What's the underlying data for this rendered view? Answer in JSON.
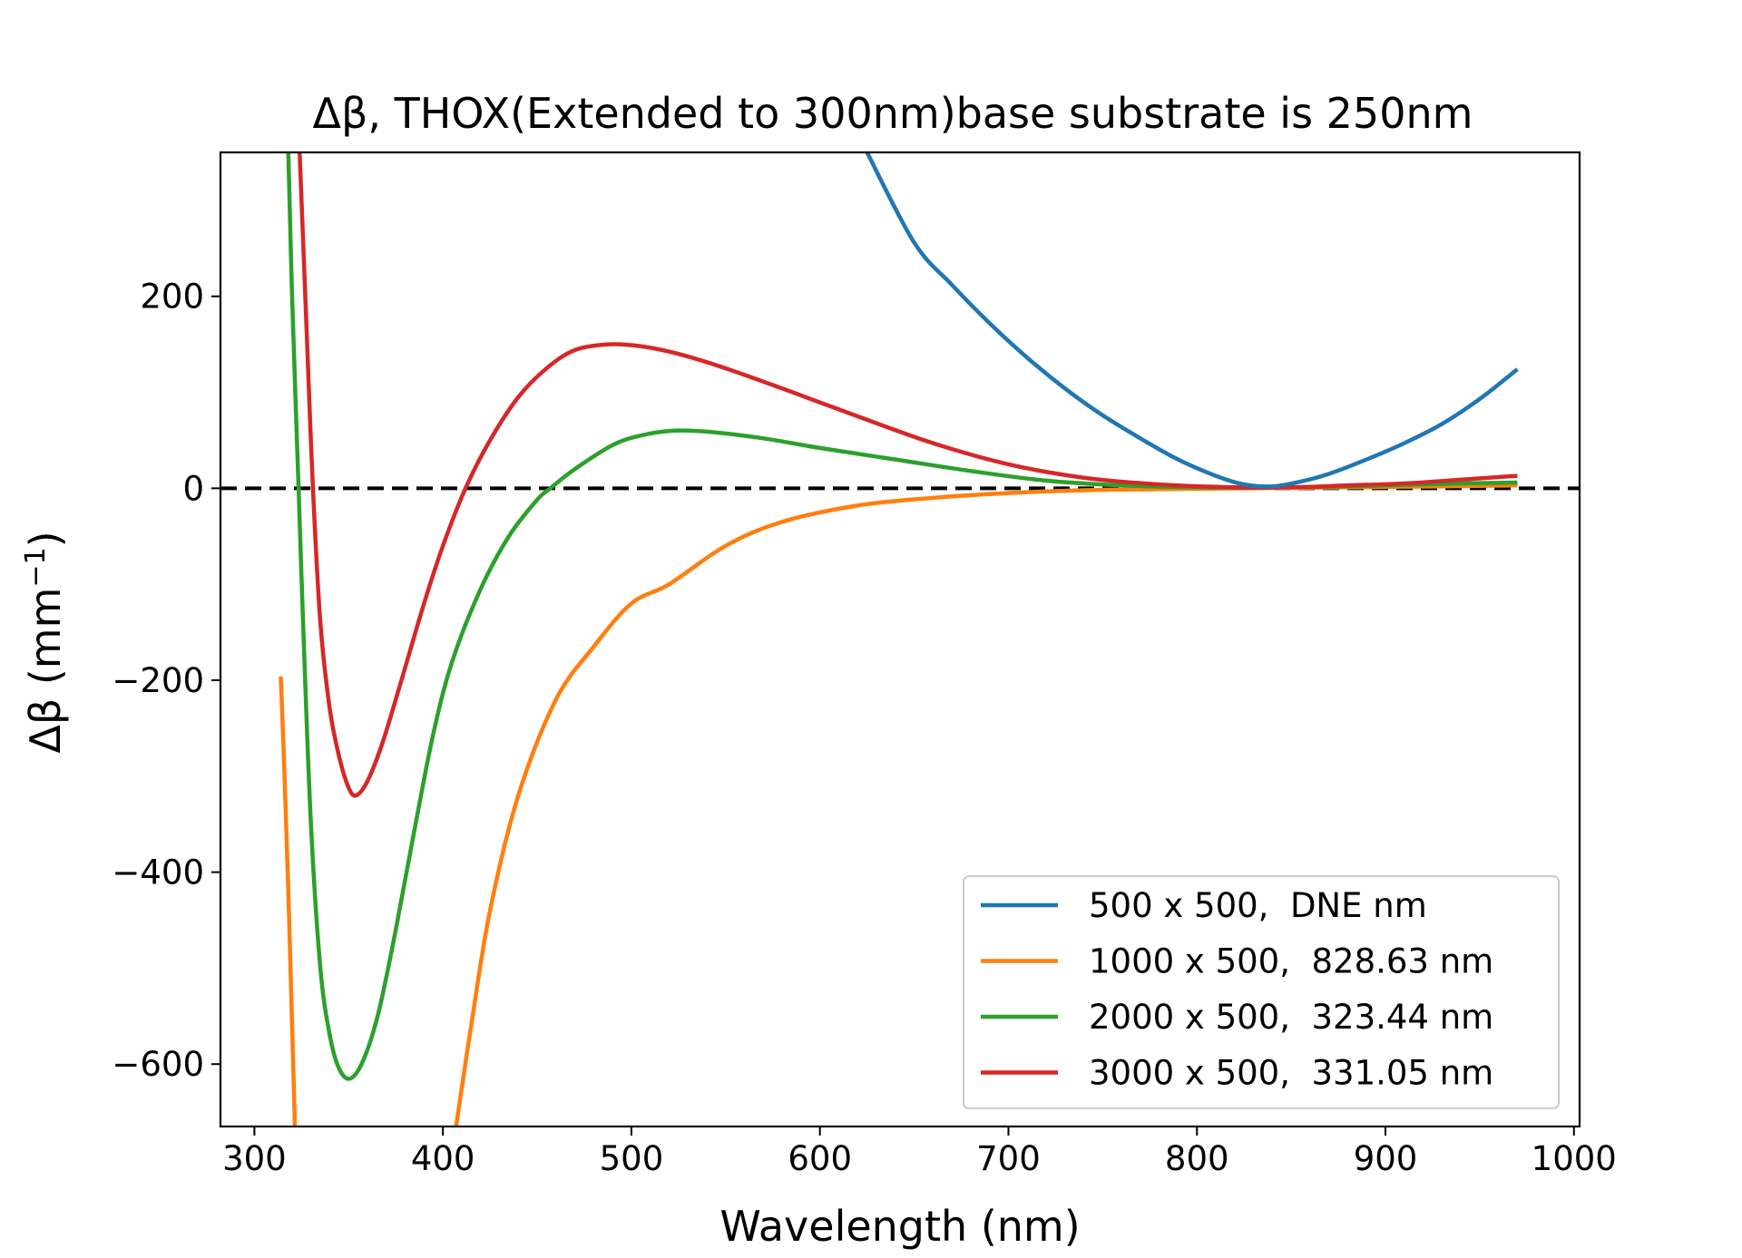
{
  "chart_data": {
    "type": "line",
    "title": "Δβ, THOX(Extended to 300nm)base substrate is 250nm",
    "xlabel": "Wavelength (nm)",
    "ylabel_main": "Δβ (mm",
    "ylabel_sup": "−1",
    "ylabel_close": ")",
    "xlim": [
      282,
      1003
    ],
    "ylim": [
      -665,
      350
    ],
    "xticks": [
      300,
      400,
      500,
      600,
      700,
      800,
      900,
      1000
    ],
    "xtick_labels": [
      "300",
      "400",
      "500",
      "600",
      "700",
      "800",
      "900",
      "1000"
    ],
    "yticks": [
      200,
      0,
      -200,
      -400,
      -600
    ],
    "ytick_labels": [
      "200",
      "0",
      "−200",
      "−400",
      "−600"
    ],
    "grid": false,
    "legend_position": "lower-right",
    "reference_line": {
      "y": 0,
      "style": "dashed",
      "color": "#000000"
    },
    "series": [
      {
        "name": "500 x 500,  DNE nm",
        "color": "#1f77b4",
        "points": [
          [
            625,
            350
          ],
          [
            650,
            256
          ],
          [
            670,
            212
          ],
          [
            690,
            172
          ],
          [
            710,
            136
          ],
          [
            730,
            104
          ],
          [
            750,
            76
          ],
          [
            770,
            52
          ],
          [
            790,
            30
          ],
          [
            810,
            13
          ],
          [
            825,
            4
          ],
          [
            840,
            2
          ],
          [
            855,
            7
          ],
          [
            870,
            15
          ],
          [
            890,
            30
          ],
          [
            910,
            47
          ],
          [
            930,
            67
          ],
          [
            950,
            93
          ],
          [
            970,
            124
          ]
        ]
      },
      {
        "name": "1000 x 500,  828.63 nm",
        "color": "#ff7f0e",
        "points": [
          [
            314,
            -196
          ],
          [
            316,
            -300
          ],
          [
            318,
            -420
          ],
          [
            320,
            -560
          ],
          [
            321.5,
            -665
          ],
          [
            null,
            null
          ],
          [
            407,
            -665
          ],
          [
            415,
            -560
          ],
          [
            425,
            -440
          ],
          [
            440,
            -320
          ],
          [
            460,
            -220
          ],
          [
            480,
            -165
          ],
          [
            500,
            -120
          ],
          [
            520,
            -100
          ],
          [
            550,
            -60
          ],
          [
            580,
            -35
          ],
          [
            620,
            -18
          ],
          [
            660,
            -10
          ],
          [
            700,
            -5
          ],
          [
            740,
            -2
          ],
          [
            780,
            -1
          ],
          [
            828.63,
            0
          ],
          [
            880,
            1
          ],
          [
            930,
            2
          ],
          [
            970,
            3
          ]
        ]
      },
      {
        "name": "2000 x 500,  323.44 nm",
        "color": "#2ca02c",
        "points": [
          [
            318,
            350
          ],
          [
            320,
            200
          ],
          [
            323.44,
            0
          ],
          [
            326,
            -150
          ],
          [
            330,
            -350
          ],
          [
            335,
            -500
          ],
          [
            340,
            -570
          ],
          [
            345,
            -605
          ],
          [
            351,
            -615
          ],
          [
            358,
            -595
          ],
          [
            366,
            -545
          ],
          [
            375,
            -460
          ],
          [
            385,
            -355
          ],
          [
            395,
            -255
          ],
          [
            405,
            -180
          ],
          [
            420,
            -105
          ],
          [
            435,
            -50
          ],
          [
            450,
            -12
          ],
          [
            457,
            0
          ],
          [
            470,
            20
          ],
          [
            490,
            45
          ],
          [
            505,
            55
          ],
          [
            522,
            60
          ],
          [
            540,
            59
          ],
          [
            570,
            52
          ],
          [
            600,
            42
          ],
          [
            640,
            30
          ],
          [
            680,
            18
          ],
          [
            720,
            8
          ],
          [
            760,
            3
          ],
          [
            800,
            1
          ],
          [
            850,
            1
          ],
          [
            900,
            3
          ],
          [
            940,
            5
          ],
          [
            970,
            6
          ]
        ]
      },
      {
        "name": "3000 x 500,  331.05 nm",
        "color": "#d62728",
        "points": [
          [
            324,
            350
          ],
          [
            326,
            250
          ],
          [
            328,
            150
          ],
          [
            331.05,
            0
          ],
          [
            335,
            -140
          ],
          [
            340,
            -230
          ],
          [
            345,
            -280
          ],
          [
            350,
            -312
          ],
          [
            354,
            -320
          ],
          [
            360,
            -305
          ],
          [
            368,
            -265
          ],
          [
            378,
            -200
          ],
          [
            390,
            -120
          ],
          [
            400,
            -60
          ],
          [
            412,
            0
          ],
          [
            425,
            50
          ],
          [
            440,
            95
          ],
          [
            455,
            125
          ],
          [
            470,
            144
          ],
          [
            488,
            150
          ],
          [
            505,
            148
          ],
          [
            525,
            140
          ],
          [
            550,
            125
          ],
          [
            580,
            104
          ],
          [
            620,
            75
          ],
          [
            660,
            47
          ],
          [
            700,
            25
          ],
          [
            740,
            11
          ],
          [
            780,
            4
          ],
          [
            820,
            1
          ],
          [
            850,
            1
          ],
          [
            880,
            3
          ],
          [
            910,
            5
          ],
          [
            940,
            9
          ],
          [
            970,
            13
          ]
        ]
      }
    ]
  }
}
